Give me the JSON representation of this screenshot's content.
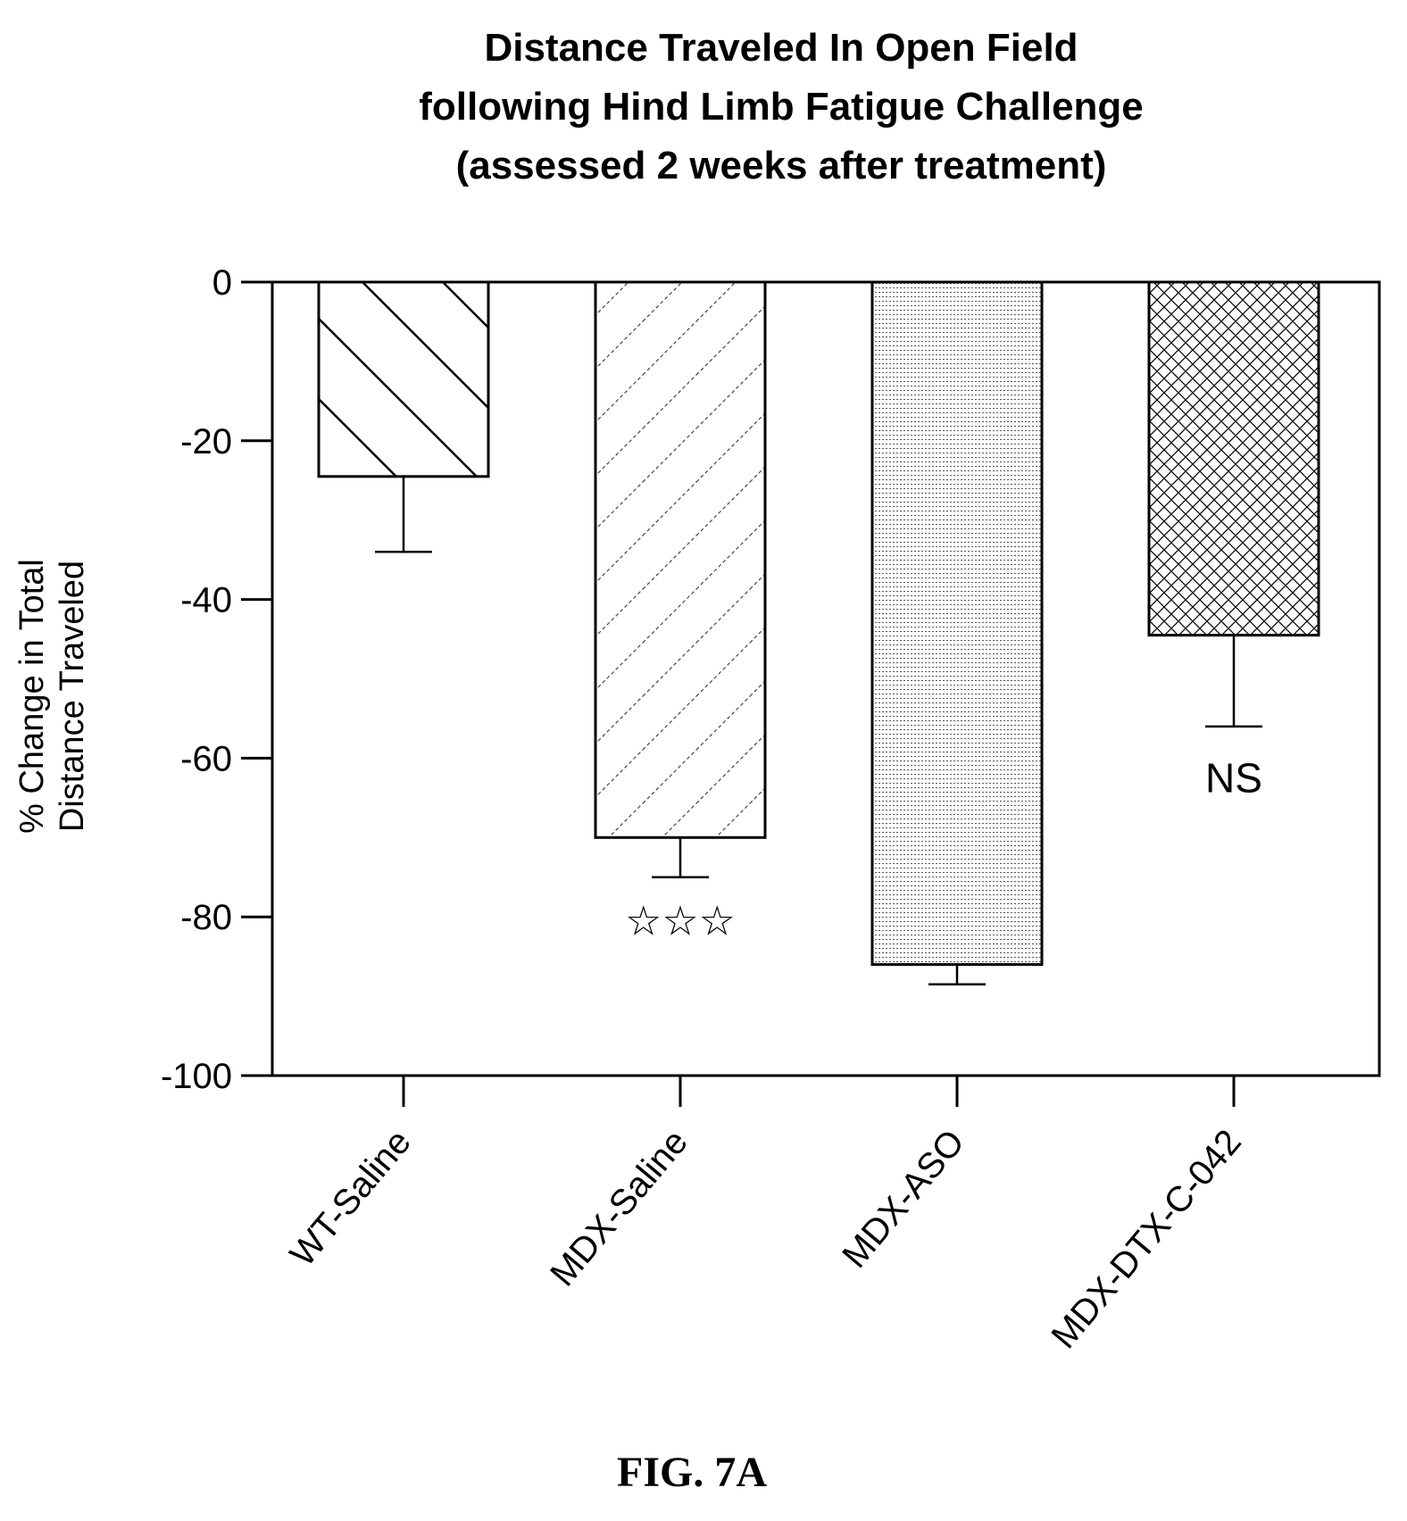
{
  "figure_label": "FIG. 7A",
  "chart_data": {
    "type": "bar",
    "title": [
      "Distance Traveled In Open Field",
      "following Hind Limb Fatigue Challenge",
      "(assessed 2 weeks after treatment)"
    ],
    "ylabel": [
      "% Change in Total",
      "Distance Traveled"
    ],
    "xlabel": "",
    "ylim": [
      -100,
      0
    ],
    "yticks": [
      0,
      -20,
      -40,
      -60,
      -80,
      -100
    ],
    "grid": false,
    "categories": [
      "WT-Saline",
      "MDX-Saline",
      "MDX-ASO",
      "MDX-DTX-C-042"
    ],
    "values": [
      -24.5,
      -70,
      -86,
      -44.5
    ],
    "error": [
      9.5,
      5,
      2.5,
      11.5
    ],
    "patterns": [
      "wide-diagonal-hatch",
      "fine-dashed-diagonal-hatch",
      "horizontal-dotted-lines",
      "crosshatch"
    ],
    "annotations": [
      "☆☆",
      "☆☆☆",
      "",
      "NS"
    ],
    "annotation_positions": [
      null,
      -80.5,
      -94.5,
      -62.5
    ]
  }
}
